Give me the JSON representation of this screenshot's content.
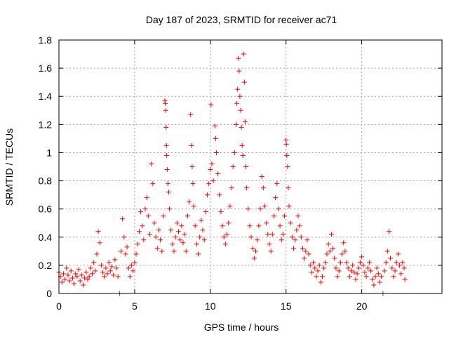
{
  "chart_data": {
    "type": "scatter",
    "title": "Day 187 of 2023, SRMTID for receiver ac71",
    "xlabel": "GPS time / hours",
    "ylabel": "SRMTID / TECUs",
    "xlim": [
      0,
      25.3
    ],
    "ylim": [
      0,
      1.8
    ],
    "xticks": [
      0,
      5,
      10,
      15,
      20
    ],
    "yticks": [
      0,
      0.2,
      0.4,
      0.6,
      0.8,
      1,
      1.2,
      1.4,
      1.6,
      1.8
    ],
    "xtick_labels": [
      "0",
      "5",
      "10",
      "15",
      "20"
    ],
    "ytick_labels": [
      "0",
      "0.2",
      "0.4",
      "0.6",
      "0.8",
      "1",
      "1.2",
      "1.4",
      "1.6",
      "1.8"
    ],
    "grid": true,
    "marker": "+",
    "color": "#ff0000",
    "series": [
      {
        "name": "SRMTID",
        "points": [
          [
            0.0,
            0.15
          ],
          [
            0.1,
            0.12
          ],
          [
            0.2,
            0.08
          ],
          [
            0.3,
            0.14
          ],
          [
            0.4,
            0.1
          ],
          [
            0.5,
            0.18
          ],
          [
            0.6,
            0.13
          ],
          [
            0.7,
            0.09
          ],
          [
            0.8,
            0.16
          ],
          [
            0.9,
            0.11
          ],
          [
            1.0,
            0.07
          ],
          [
            1.1,
            0.14
          ],
          [
            1.2,
            0.12
          ],
          [
            1.3,
            0.17
          ],
          [
            1.4,
            0.09
          ],
          [
            1.5,
            0.13
          ],
          [
            1.6,
            0.06
          ],
          [
            1.7,
            0.11
          ],
          [
            1.8,
            0.15
          ],
          [
            1.9,
            0.1
          ],
          [
            2.0,
            0.12
          ],
          [
            2.1,
            0.18
          ],
          [
            2.2,
            0.14
          ],
          [
            2.3,
            0.22
          ],
          [
            2.4,
            0.16
          ],
          [
            2.5,
            0.28
          ],
          [
            2.6,
            0.44
          ],
          [
            2.7,
            0.36
          ],
          [
            2.8,
            0.2
          ],
          [
            2.9,
            0.15
          ],
          [
            3.0,
            0.12
          ],
          [
            3.1,
            0.18
          ],
          [
            3.2,
            0.14
          ],
          [
            3.3,
            0.22
          ],
          [
            3.4,
            0.16
          ],
          [
            3.5,
            0.19
          ],
          [
            3.6,
            0.13
          ],
          [
            3.7,
            0.24
          ],
          [
            3.8,
            0.18
          ],
          [
            3.9,
            0.12
          ],
          [
            4.0,
            0.0
          ],
          [
            4.1,
            0.3
          ],
          [
            4.2,
            0.53
          ],
          [
            4.3,
            0.4
          ],
          [
            4.4,
            0.28
          ],
          [
            4.5,
            0.33
          ],
          [
            4.6,
            0.18
          ],
          [
            4.7,
            0.12
          ],
          [
            4.8,
            0.2
          ],
          [
            4.9,
            0.16
          ],
          [
            5.0,
            0.22
          ],
          [
            5.1,
            0.28
          ],
          [
            5.2,
            0.35
          ],
          [
            5.3,
            0.44
          ],
          [
            5.4,
            0.58
          ],
          [
            5.5,
            0.48
          ],
          [
            5.6,
            0.38
          ],
          [
            5.7,
            0.6
          ],
          [
            5.8,
            0.68
          ],
          [
            5.9,
            0.55
          ],
          [
            6.0,
            0.42
          ],
          [
            6.1,
            0.92
          ],
          [
            6.2,
            0.78
          ],
          [
            6.3,
            0.5
          ],
          [
            6.4,
            0.4
          ],
          [
            6.5,
            0.32
          ],
          [
            6.6,
            0.45
          ],
          [
            6.7,
            0.38
          ],
          [
            6.8,
            0.3
          ],
          [
            6.9,
            0.55
          ],
          [
            7.0,
            1.37
          ],
          [
            7.02,
            1.35
          ],
          [
            7.05,
            1.3
          ],
          [
            7.08,
            1.18
          ],
          [
            7.1,
            1.05
          ],
          [
            7.12,
            0.98
          ],
          [
            7.15,
            0.88
          ],
          [
            7.2,
            0.78
          ],
          [
            7.25,
            0.72
          ],
          [
            7.3,
            0.6
          ],
          [
            7.4,
            0.45
          ],
          [
            7.5,
            0.35
          ],
          [
            7.6,
            0.3
          ],
          [
            7.7,
            0.4
          ],
          [
            7.8,
            0.5
          ],
          [
            7.9,
            0.44
          ],
          [
            8.0,
            0.38
          ],
          [
            8.1,
            0.48
          ],
          [
            8.2,
            0.36
          ],
          [
            8.3,
            0.42
          ],
          [
            8.4,
            0.3
          ],
          [
            8.5,
            0.55
          ],
          [
            8.6,
            0.65
          ],
          [
            8.7,
            1.27
          ],
          [
            8.75,
            1.05
          ],
          [
            8.8,
            0.9
          ],
          [
            8.85,
            0.78
          ],
          [
            8.9,
            0.62
          ],
          [
            9.0,
            0.48
          ],
          [
            9.1,
            0.35
          ],
          [
            9.2,
            0.28
          ],
          [
            9.3,
            0.4
          ],
          [
            9.4,
            0.52
          ],
          [
            9.5,
            0.45
          ],
          [
            9.6,
            0.38
          ],
          [
            9.7,
            0.58
          ],
          [
            9.8,
            0.7
          ],
          [
            9.9,
            0.78
          ],
          [
            10.0,
            0.88
          ],
          [
            10.05,
            1.34
          ],
          [
            10.1,
            0.92
          ],
          [
            10.2,
            0.8
          ],
          [
            10.3,
            1.19
          ],
          [
            10.35,
            1.1
          ],
          [
            10.4,
            1.0
          ],
          [
            10.5,
            0.85
          ],
          [
            10.6,
            0.7
          ],
          [
            10.7,
            0.58
          ],
          [
            10.8,
            0.48
          ],
          [
            10.9,
            0.4
          ],
          [
            11.0,
            0.35
          ],
          [
            11.1,
            0.42
          ],
          [
            11.2,
            0.5
          ],
          [
            11.3,
            0.62
          ],
          [
            11.4,
            0.75
          ],
          [
            11.5,
            0.9
          ],
          [
            11.6,
            1.0
          ],
          [
            11.7,
            1.2
          ],
          [
            11.75,
            1.35
          ],
          [
            11.8,
            1.45
          ],
          [
            11.85,
            1.67
          ],
          [
            11.9,
            1.58
          ],
          [
            11.95,
            1.4
          ],
          [
            12.0,
            1.3
          ],
          [
            12.05,
            1.18
          ],
          [
            12.1,
            1.05
          ],
          [
            12.15,
            0.98
          ],
          [
            12.2,
            1.7
          ],
          [
            12.25,
            1.5
          ],
          [
            12.3,
            1.22
          ],
          [
            12.35,
            0.9
          ],
          [
            12.4,
            0.75
          ],
          [
            12.5,
            0.6
          ],
          [
            12.6,
            0.48
          ],
          [
            12.7,
            0.4
          ],
          [
            12.8,
            0.32
          ],
          [
            12.9,
            0.25
          ],
          [
            13.0,
            0.3
          ],
          [
            13.1,
            0.38
          ],
          [
            13.2,
            0.48
          ],
          [
            13.3,
            0.6
          ],
          [
            13.4,
            0.83
          ],
          [
            13.5,
            0.75
          ],
          [
            13.6,
            0.62
          ],
          [
            13.7,
            0.5
          ],
          [
            13.8,
            0.42
          ],
          [
            13.9,
            0.35
          ],
          [
            14.0,
            0.3
          ],
          [
            14.1,
            0.42
          ],
          [
            14.2,
            0.55
          ],
          [
            14.3,
            0.68
          ],
          [
            14.4,
            0.78
          ],
          [
            14.5,
            0.6
          ],
          [
            14.6,
            0.48
          ],
          [
            14.7,
            0.38
          ],
          [
            14.8,
            0.42
          ],
          [
            14.9,
            0.55
          ],
          [
            15.0,
            1.09
          ],
          [
            15.02,
            1.06
          ],
          [
            15.05,
            0.98
          ],
          [
            15.1,
            0.9
          ],
          [
            15.15,
            0.75
          ],
          [
            15.2,
            0.62
          ],
          [
            15.3,
            0.5
          ],
          [
            15.4,
            0.4
          ],
          [
            15.5,
            0.32
          ],
          [
            15.6,
            0.38
          ],
          [
            15.7,
            0.45
          ],
          [
            15.8,
            0.55
          ],
          [
            15.9,
            0.48
          ],
          [
            16.0,
            0.4
          ],
          [
            16.1,
            0.32
          ],
          [
            16.2,
            0.25
          ],
          [
            16.3,
            0.3
          ],
          [
            16.4,
            0.38
          ],
          [
            16.5,
            0.28
          ],
          [
            16.6,
            0.2
          ],
          [
            16.7,
            0.15
          ],
          [
            16.8,
            0.22
          ],
          [
            16.9,
            0.18
          ],
          [
            17.0,
            0.12
          ],
          [
            17.1,
            0.16
          ],
          [
            17.2,
            0.2
          ],
          [
            17.3,
            0.08
          ],
          [
            17.4,
            0.12
          ],
          [
            17.5,
            0.18
          ],
          [
            17.6,
            0.22
          ],
          [
            17.7,
            0.28
          ],
          [
            17.8,
            0.35
          ],
          [
            17.9,
            0.3
          ],
          [
            18.0,
            0.42
          ],
          [
            18.1,
            0.32
          ],
          [
            18.2,
            0.25
          ],
          [
            18.3,
            0.18
          ],
          [
            18.4,
            0.12
          ],
          [
            18.5,
            0.16
          ],
          [
            18.6,
            0.22
          ],
          [
            18.7,
            0.28
          ],
          [
            18.8,
            0.36
          ],
          [
            18.9,
            0.3
          ],
          [
            19.0,
            0.22
          ],
          [
            19.1,
            0.18
          ],
          [
            19.2,
            0.12
          ],
          [
            19.3,
            0.16
          ],
          [
            19.4,
            0.2
          ],
          [
            19.5,
            0.15
          ],
          [
            19.6,
            0.1
          ],
          [
            19.7,
            0.14
          ],
          [
            19.8,
            0.18
          ],
          [
            19.9,
            0.22
          ],
          [
            20.0,
            0.26
          ],
          [
            20.1,
            0.2
          ],
          [
            20.2,
            0.15
          ],
          [
            20.3,
            0.12
          ],
          [
            20.4,
            0.18
          ],
          [
            20.5,
            0.22
          ],
          [
            20.6,
            0.16
          ],
          [
            20.7,
            0.1
          ],
          [
            20.8,
            0.06
          ],
          [
            20.9,
            0.12
          ],
          [
            21.0,
            0.18
          ],
          [
            21.1,
            0.14
          ],
          [
            21.2,
            0.08
          ],
          [
            21.3,
            0.12
          ],
          [
            21.4,
            0.0
          ],
          [
            21.5,
            0.16
          ],
          [
            21.6,
            0.22
          ],
          [
            21.7,
            0.3
          ],
          [
            21.8,
            0.44
          ],
          [
            21.9,
            0.25
          ],
          [
            22.0,
            0.18
          ],
          [
            22.1,
            0.12
          ],
          [
            22.2,
            0.16
          ],
          [
            22.3,
            0.22
          ],
          [
            22.4,
            0.28
          ],
          [
            22.5,
            0.2
          ],
          [
            22.6,
            0.14
          ],
          [
            22.7,
            0.22
          ],
          [
            22.8,
            0.18
          ],
          [
            22.85,
            0.1
          ]
        ]
      }
    ]
  }
}
